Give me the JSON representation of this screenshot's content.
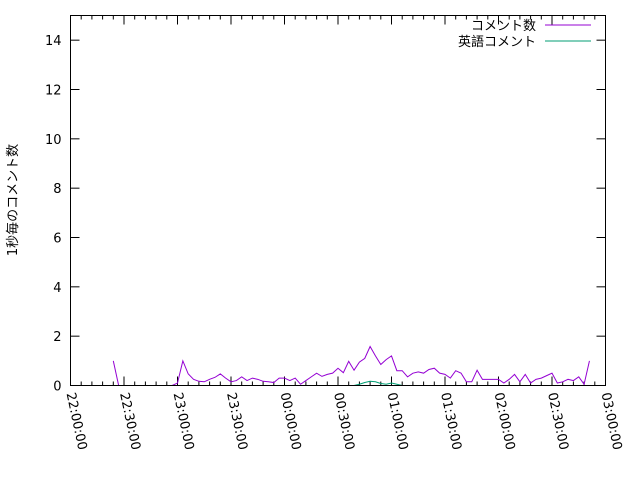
{
  "chart_data": {
    "type": "line",
    "title": "",
    "xlabel": "",
    "ylabel": "1秒毎のコメント数",
    "ylim": [
      0,
      15
    ],
    "xlim": [
      "22:00:00",
      "03:00:00"
    ],
    "yticks": [
      "0",
      "2",
      "4",
      "6",
      "8",
      "10",
      "12",
      "14"
    ],
    "xticks": [
      "22:00:00",
      "22:30:00",
      "23:00:00",
      "23:30:00",
      "00:00:00",
      "00:30:00",
      "01:00:00",
      "01:30:00",
      "02:00:00",
      "02:30:00",
      "03:00:00"
    ],
    "grid": false,
    "legend_position": "top-right",
    "x": [
      "22:24",
      "22:27",
      "22:30",
      "22:33",
      "22:36",
      "22:39",
      "22:42",
      "22:45",
      "22:48",
      "22:51",
      "22:54",
      "22:57",
      "23:00",
      "23:03",
      "23:06",
      "23:09",
      "23:12",
      "23:15",
      "23:18",
      "23:21",
      "23:24",
      "23:27",
      "23:30",
      "23:33",
      "23:36",
      "23:39",
      "23:42",
      "23:45",
      "23:48",
      "23:51",
      "23:54",
      "23:57",
      "00:00",
      "00:03",
      "00:06",
      "00:09",
      "00:12",
      "00:15",
      "00:18",
      "00:21",
      "00:24",
      "00:27",
      "00:30",
      "00:33",
      "00:36",
      "00:39",
      "00:42",
      "00:45",
      "00:48",
      "00:51",
      "00:54",
      "00:57",
      "01:00",
      "01:03",
      "01:06",
      "01:09",
      "01:12",
      "01:15",
      "01:18",
      "01:21",
      "01:24",
      "01:27",
      "01:30",
      "01:33",
      "01:36",
      "01:39",
      "01:42",
      "01:45",
      "01:48",
      "01:51",
      "01:54",
      "01:57",
      "02:00",
      "02:03",
      "02:06",
      "02:09",
      "02:12",
      "02:15",
      "02:18",
      "02:21",
      "02:24",
      "02:27",
      "02:30",
      "02:33",
      "02:36",
      "02:39",
      "02:42",
      "02:45",
      "02:48",
      "02:51"
    ],
    "series": [
      {
        "name": "コメント数",
        "color": "#9400d3",
        "values": [
          1.0,
          0,
          0,
          0,
          0,
          0,
          0,
          0,
          0,
          0,
          0,
          0,
          0.1,
          1.0,
          0.47,
          0.25,
          0.17,
          0.15,
          0.25,
          0.33,
          0.47,
          0.3,
          0.15,
          0.2,
          0.35,
          0.2,
          0.3,
          0.25,
          0.17,
          0.15,
          0.12,
          0.3,
          0.3,
          0.2,
          0.3,
          0.05,
          0.2,
          0.35,
          0.5,
          0.37,
          0.45,
          0.5,
          0.7,
          0.52,
          0.98,
          0.62,
          0.95,
          1.1,
          1.58,
          1.2,
          0.85,
          1.05,
          1.2,
          0.6,
          0.6,
          0.35,
          0.5,
          0.55,
          0.5,
          0.65,
          0.7,
          0.5,
          0.45,
          0.3,
          0.6,
          0.5,
          0.15,
          0.15,
          0.62,
          0.25,
          0.25,
          0.25,
          0.25,
          0.1,
          0.25,
          0.45,
          0.15,
          0.45,
          0.1,
          0.25,
          0.3,
          0.4,
          0.5,
          0.1,
          0.15,
          0.25,
          0.2,
          0.35,
          0.05,
          1.0
        ]
      },
      {
        "name": "英語コメント",
        "color": "#009e73",
        "values": [
          0,
          0,
          0,
          0,
          0,
          0,
          0,
          0,
          0,
          0,
          0,
          0,
          0,
          0,
          0,
          0,
          0,
          0,
          0,
          0,
          0,
          0,
          0,
          0,
          0,
          0,
          0,
          0,
          0,
          0,
          0,
          0,
          0,
          0,
          0,
          0,
          0,
          0,
          0,
          0,
          0,
          0,
          0,
          0,
          0,
          0,
          0.05,
          0.12,
          0.17,
          0.15,
          0.08,
          0.05,
          0.1,
          0.05,
          0,
          0,
          0,
          0,
          0,
          0,
          0,
          0,
          0,
          0,
          0,
          0,
          0,
          0,
          0,
          0,
          0,
          0,
          0,
          0,
          0,
          0,
          0,
          0,
          0,
          0,
          0,
          0,
          0,
          0,
          0,
          0,
          0,
          0,
          0,
          0
        ]
      }
    ]
  }
}
